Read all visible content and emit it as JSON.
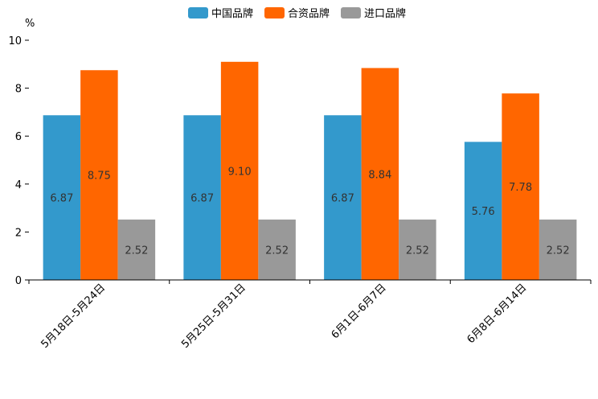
{
  "chart_data": {
    "type": "bar",
    "title": "",
    "xlabel": "",
    "ylabel": "%",
    "ylim": [
      0,
      10
    ],
    "yticks": [
      0,
      2,
      4,
      6,
      8,
      10
    ],
    "grid": false,
    "legend_position": "top-center",
    "categories": [
      "5月18日-5月24日",
      "5月25日-5月31日",
      "6月1日-6月7日",
      "6月8日-6月14日"
    ],
    "series": [
      {
        "name": "中国品牌",
        "color": "#3399cc",
        "values": [
          6.87,
          6.87,
          6.87,
          5.76
        ],
        "labels": [
          "6.87",
          "6.87",
          "6.87",
          "5.76"
        ]
      },
      {
        "name": "合资品牌",
        "color": "#ff6600",
        "values": [
          8.75,
          9.1,
          8.84,
          7.78
        ],
        "labels": [
          "8.75",
          "9.10",
          "8.84",
          "7.78"
        ]
      },
      {
        "name": "进口品牌",
        "color": "#999999",
        "values": [
          2.52,
          2.52,
          2.52,
          2.52
        ],
        "labels": [
          "2.52",
          "2.52",
          "2.52",
          "2.52"
        ]
      }
    ]
  }
}
